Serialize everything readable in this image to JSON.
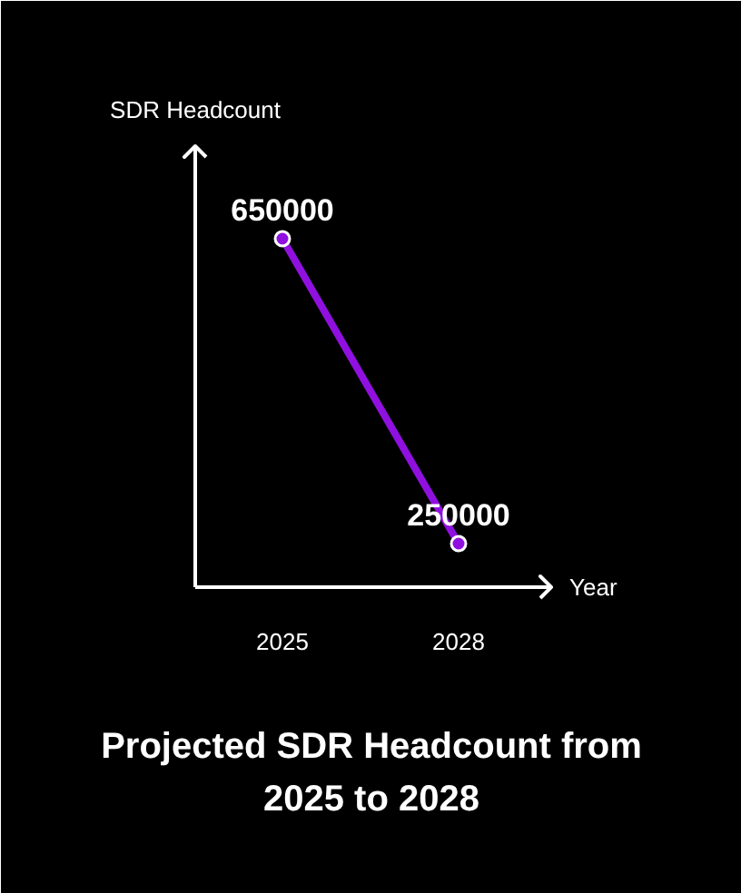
{
  "chart_data": {
    "type": "line",
    "title": "Projected SDR Headcount from 2025 to 2028",
    "xlabel": "Year",
    "ylabel": "SDR Headcount",
    "categories": [
      "2025",
      "2028"
    ],
    "series": [
      {
        "color": "#9010e0",
        "values": [
          650000,
          250000
        ]
      }
    ],
    "data_labels": true,
    "marker": "circle",
    "line_style": "solid",
    "grid": false
  }
}
